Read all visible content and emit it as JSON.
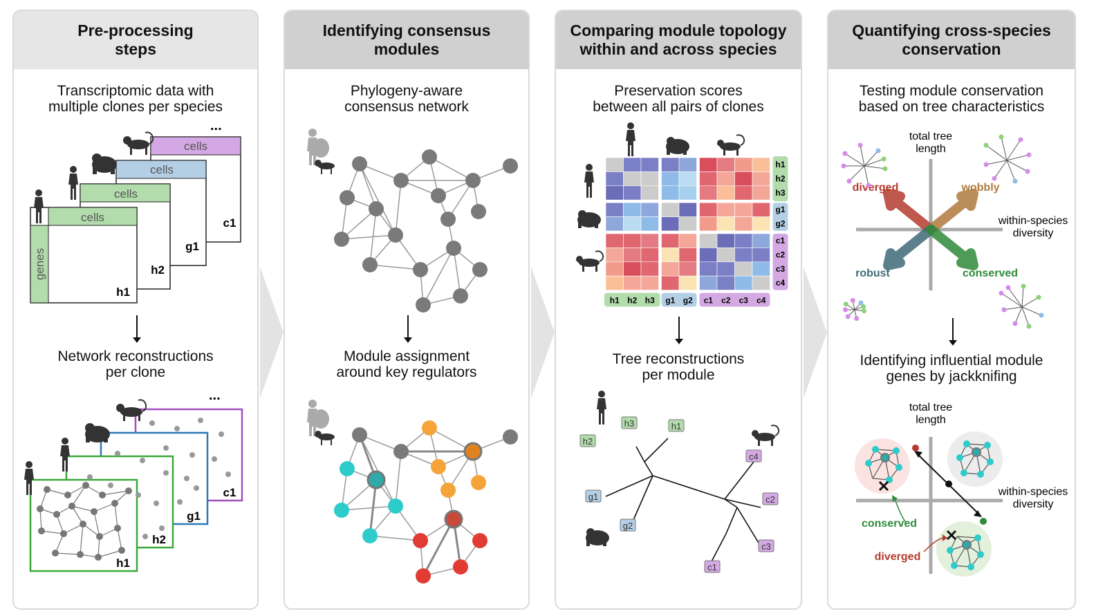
{
  "panels": [
    {
      "title_l1": "Pre-processing",
      "title_l2": "steps",
      "sub1_l1": "Transcriptomic data with",
      "sub1_l2": "multiple clones per species",
      "sub2_l1": "Network reconstructions",
      "sub2_l2": "per clone"
    },
    {
      "title_l1": "Identifying consensus",
      "title_l2": "modules",
      "sub1_l1": "Phylogeny-aware",
      "sub1_l2": "consensus network",
      "sub2_l1": "Module assignment",
      "sub2_l2": "around key regulators"
    },
    {
      "title_l1": "Comparing module topology",
      "title_l2": "within and across species",
      "sub1_l1": "Preservation scores",
      "sub1_l2": "between all pairs of clones",
      "sub2_l1": "Tree reconstructions",
      "sub2_l2": "per module"
    },
    {
      "title_l1": "Quantifying cross-species",
      "title_l2": "conservation",
      "sub1_l1": "Testing module conservation",
      "sub1_l2": "based on tree characteristics",
      "sub2_l1": "Identifying influential module",
      "sub2_l2": "genes by jackknifing"
    }
  ],
  "matrix": {
    "cells": "cells",
    "genes": "genes",
    "dots": "...",
    "h1": "h1",
    "h2": "h2",
    "g1": "g1",
    "c1": "c1"
  },
  "heatmap": {
    "rows": [
      "h1",
      "h2",
      "h3",
      "g1",
      "g2",
      "c1",
      "c2",
      "c3",
      "c4"
    ],
    "cols": [
      "h1",
      "h2",
      "h3",
      "g1",
      "g2",
      "c1",
      "c2",
      "c3",
      "c4"
    ]
  },
  "tree": {
    "labels": [
      "h1",
      "h2",
      "h3",
      "g1",
      "g2",
      "c1",
      "c2",
      "c3",
      "c4"
    ]
  },
  "conservation": {
    "axis_y_l1": "total tree",
    "axis_y_l2": "length",
    "axis_x_l1": "within-species",
    "axis_x_l2": "diversity",
    "diverged": "diverged",
    "wobbly": "wobbly",
    "robust": "robust",
    "conserved": "conserved"
  },
  "colors": {
    "human": "#b3dcad",
    "gorilla": "#b4cfe5",
    "monkey": "#d4a9e3",
    "cyan": "#2ecbcb",
    "orange": "#f5a43a",
    "red": "#e03c34",
    "green_frame": "#3aa83a",
    "blue_frame": "#2f78b8",
    "purple_frame": "#a24ec0"
  }
}
